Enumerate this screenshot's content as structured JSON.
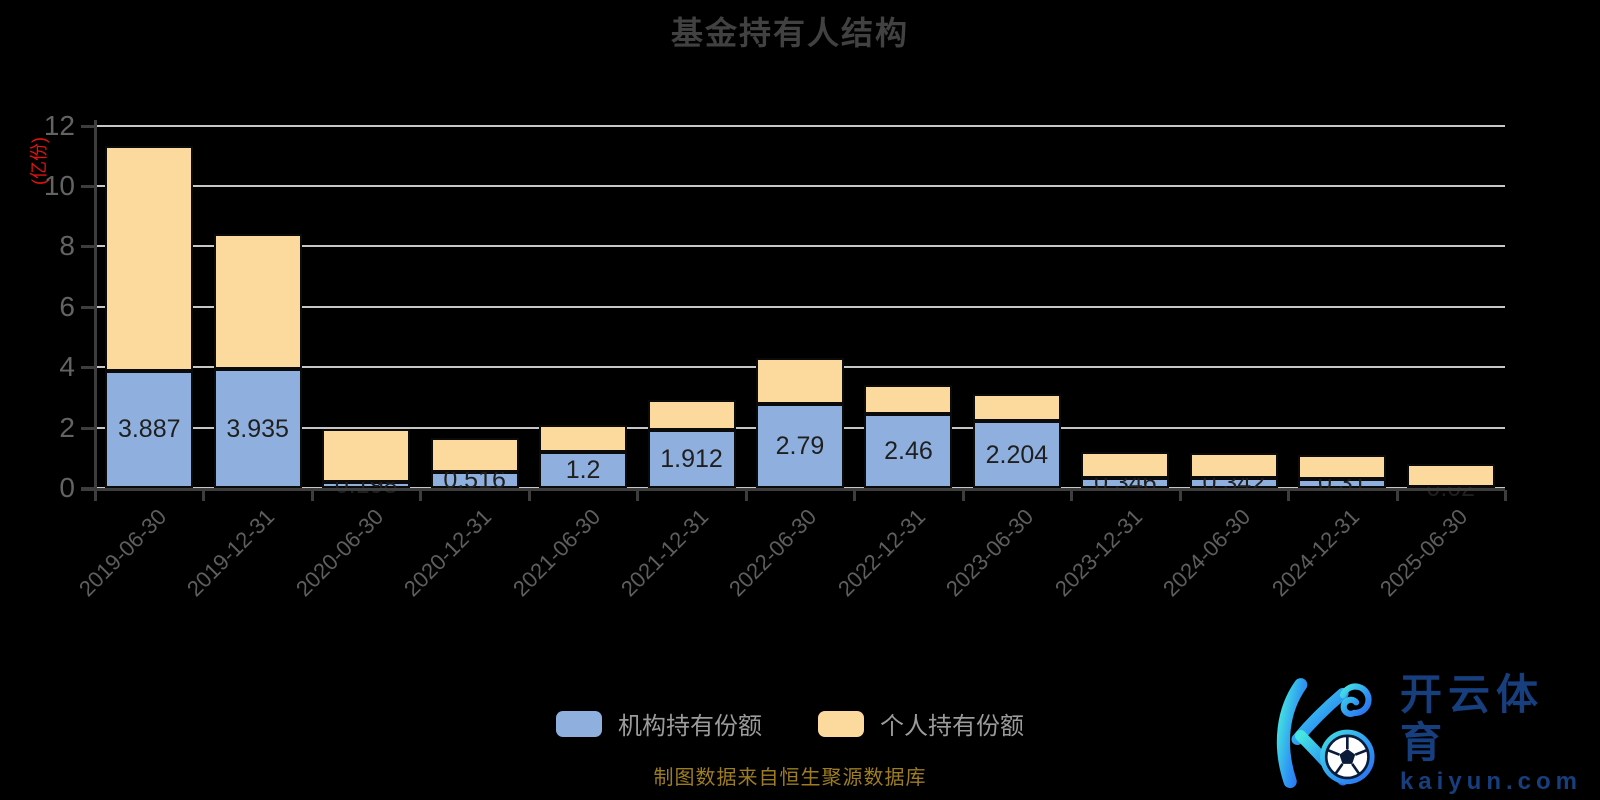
{
  "title": "基金持有人结构",
  "y_axis": {
    "name": "(亿份)",
    "ticks": [
      0,
      2,
      4,
      6,
      8,
      10,
      12
    ],
    "max": 12
  },
  "legend": [
    {
      "label": "机构持有份额",
      "color": "#8fb0de"
    },
    {
      "label": "个人持有份额",
      "color": "#fcda9d"
    }
  ],
  "footer": "制图数据来自恒生聚源数据库",
  "watermark": {
    "cn": "开云体育",
    "url": "kaiyun.com"
  },
  "chart_data": {
    "type": "bar",
    "stacked": true,
    "title": "基金持有人结构",
    "ylabel": "(亿份)",
    "ylim": [
      0,
      12
    ],
    "grid": true,
    "legend_position": "bottom",
    "categories": [
      "2019-06-30",
      "2019-12-31",
      "2020-06-30",
      "2020-12-31",
      "2021-06-30",
      "2021-12-31",
      "2022-06-30",
      "2022-12-31",
      "2023-06-30",
      "2023-12-31",
      "2024-06-30",
      "2024-12-31",
      "2025-06-30"
    ],
    "series": [
      {
        "name": "机构持有份额",
        "color": "#8fb0de",
        "values": [
          3.887,
          3.935,
          0.198,
          0.516,
          1.2,
          1.912,
          2.79,
          2.46,
          2.204,
          0.346,
          0.342,
          0.31,
          0.02
        ],
        "labels": [
          "3.887",
          "3.935",
          "0.198",
          "0.516",
          "1.2",
          "1.912",
          "2.79",
          "2.46",
          "2.204",
          "0.346",
          "0.342",
          "0.31",
          "0.02"
        ]
      },
      {
        "name": "个人持有份额",
        "color": "#fcda9d",
        "values": [
          7.45,
          4.47,
          1.75,
          1.13,
          0.9,
          1.0,
          1.5,
          0.95,
          0.9,
          0.85,
          0.81,
          0.78,
          0.76
        ]
      }
    ]
  }
}
